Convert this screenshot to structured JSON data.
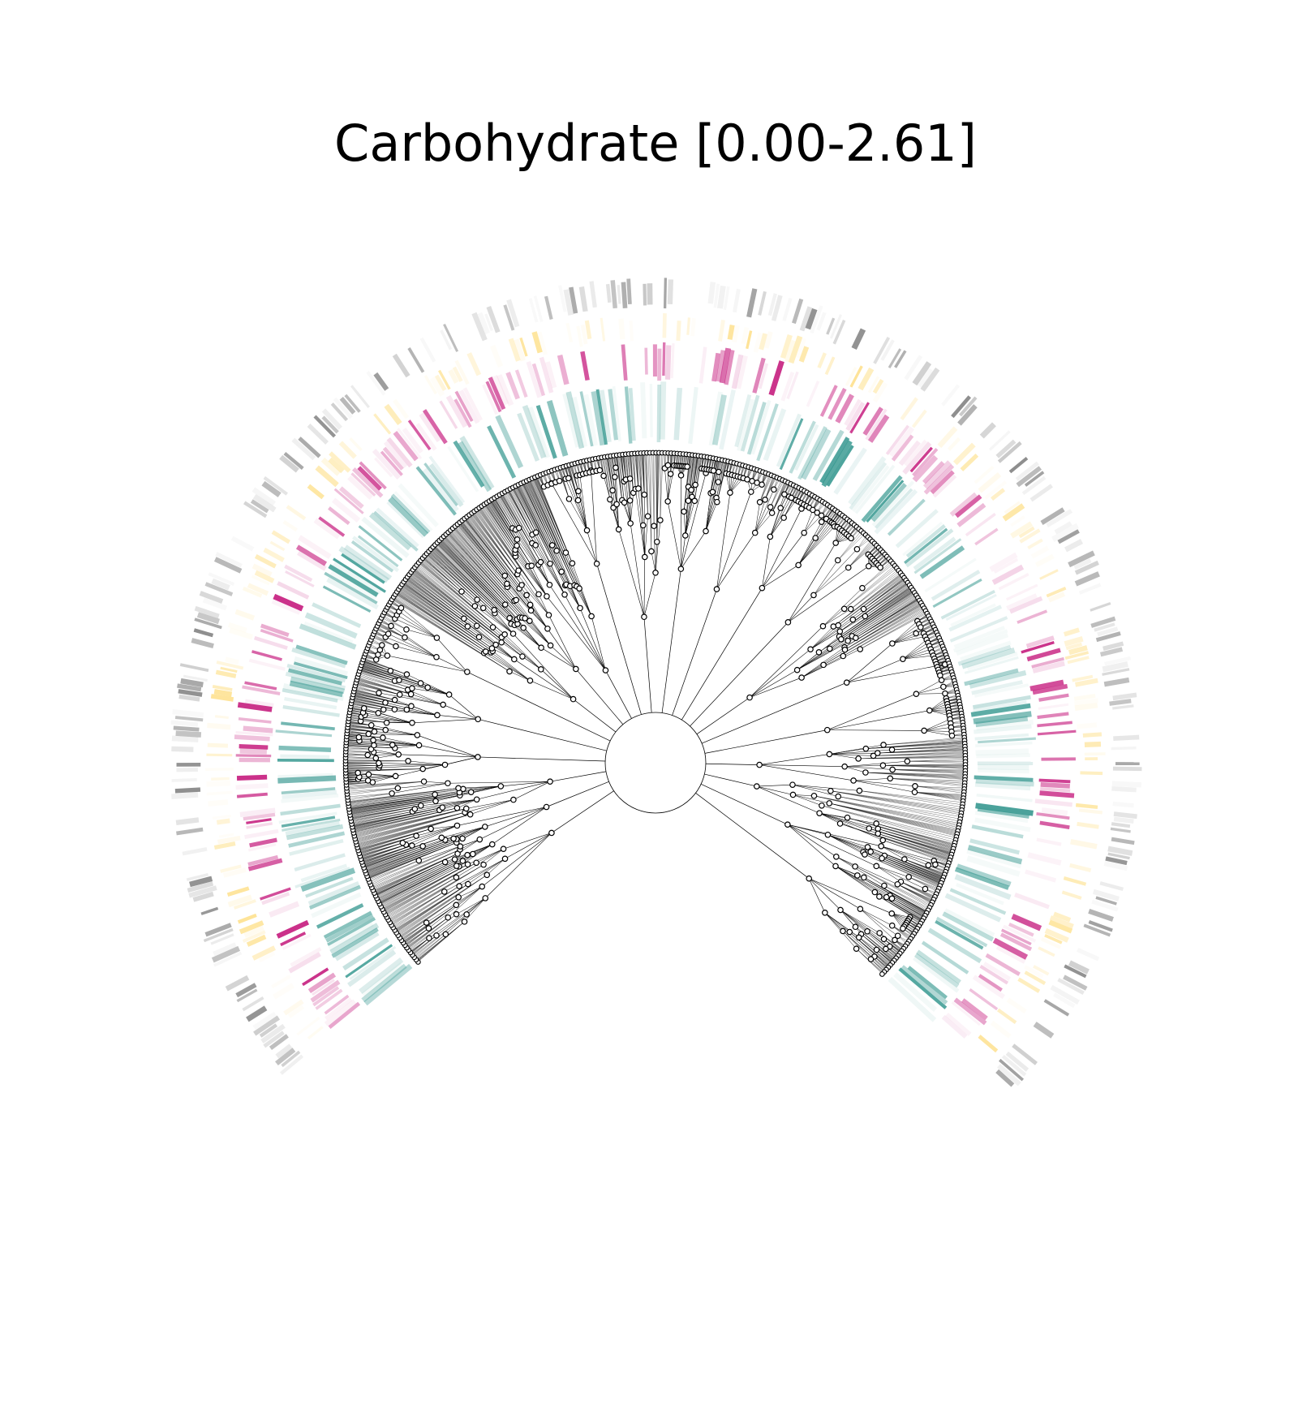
{
  "figure": {
    "title": "Carbohydrate [0.00-2.61]"
  },
  "diagram": {
    "type": "circular-phylogenetic-tree",
    "gap": "bottom",
    "branch_color": "#000000",
    "node_fill": "#ffffff",
    "node_stroke": "#000000",
    "ring_colormaps": [
      {
        "name": "teal",
        "color": "#35978f"
      },
      {
        "name": "magenta",
        "color": "#c51b7d"
      },
      {
        "name": "yellow",
        "color": "#fee08b"
      },
      {
        "name": "gray",
        "color": "#808080"
      }
    ]
  }
}
